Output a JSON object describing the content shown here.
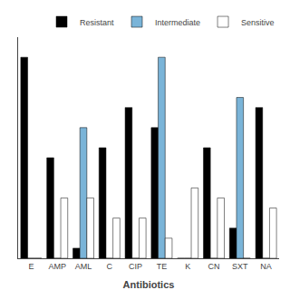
{
  "chart_data": {
    "type": "bar",
    "categories": [
      "E",
      "AMP",
      "AML",
      "C",
      "CIP",
      "TE",
      "K",
      "CN",
      "SXT",
      "NA"
    ],
    "series": [
      {
        "name": "Resistant",
        "color": "#000000",
        "values": [
          100,
          50,
          5,
          55,
          75,
          65,
          0,
          55,
          15,
          75
        ]
      },
      {
        "name": "Intermediate",
        "color": "#7ab4d8",
        "values": [
          0,
          0,
          65,
          0,
          0,
          100,
          0,
          0,
          80,
          0
        ]
      },
      {
        "name": "Sensitive",
        "color": "#ffffff",
        "values": [
          0,
          30,
          30,
          20,
          20,
          10,
          35,
          30,
          0,
          25
        ]
      }
    ],
    "xlabel": "Antibiotics",
    "ylim": [
      0,
      110
    ],
    "tick_labels": "x",
    "grid": false,
    "legend": "upper right"
  }
}
